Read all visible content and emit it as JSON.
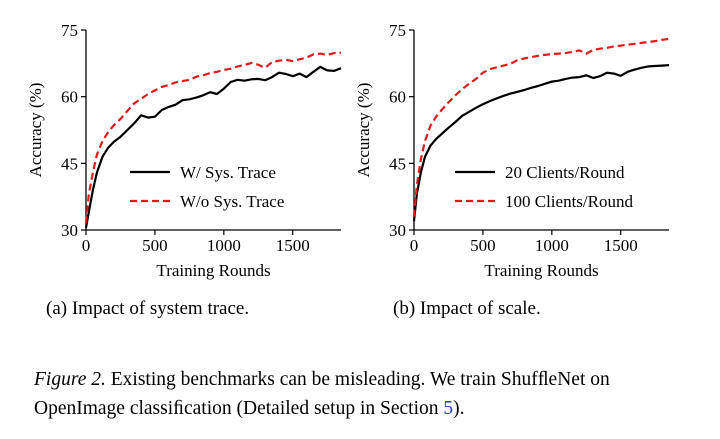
{
  "chart_data": [
    {
      "type": "line",
      "title": "",
      "xlabel": "Training Rounds",
      "ylabel": "Accuracy (%)",
      "xlim": [
        0,
        1850
      ],
      "ylim": [
        30,
        75
      ],
      "xticks": [
        0,
        500,
        1000,
        1500
      ],
      "yticks": [
        30,
        45,
        60,
        75
      ],
      "legend_position": "lower-right",
      "series": [
        {
          "name": "W/ Sys. Trace",
          "color": "#000000",
          "style": "solid",
          "x": [
            0,
            20,
            50,
            80,
            120,
            160,
            200,
            250,
            300,
            350,
            400,
            450,
            500,
            550,
            600,
            650,
            700,
            750,
            800,
            850,
            900,
            950,
            1000,
            1050,
            1100,
            1150,
            1200,
            1250,
            1300,
            1350,
            1400,
            1450,
            1500,
            1550,
            1600,
            1650,
            1700,
            1750,
            1800,
            1850
          ],
          "y": [
            30.5,
            34,
            39,
            43,
            46.5,
            48.5,
            49.8,
            51,
            52.5,
            54,
            55.8,
            55.3,
            55.5,
            57,
            57.7,
            58.2,
            59.2,
            59.4,
            59.8,
            60.3,
            61,
            60.6,
            61.8,
            63.3,
            63.8,
            63.6,
            63.9,
            64,
            63.7,
            64.4,
            65.4,
            65.1,
            64.6,
            65.2,
            64.4,
            65.6,
            66.7,
            65.9,
            65.8,
            66.4
          ]
        },
        {
          "name": "W/o Sys. Trace",
          "color": "#e31a1c",
          "style": "dashed",
          "x": [
            0,
            20,
            50,
            80,
            120,
            160,
            200,
            250,
            300,
            350,
            400,
            450,
            500,
            550,
            600,
            650,
            700,
            750,
            800,
            850,
            900,
            950,
            1000,
            1050,
            1100,
            1150,
            1200,
            1250,
            1300,
            1350,
            1400,
            1450,
            1500,
            1550,
            1600,
            1650,
            1700,
            1750,
            1800,
            1850
          ],
          "y": [
            31.5,
            38,
            43,
            47,
            50,
            52,
            53.5,
            55,
            56.8,
            58.5,
            59.5,
            60.6,
            61.4,
            62.2,
            62.6,
            63.2,
            63.5,
            63.8,
            64.5,
            64.8,
            65.3,
            65.6,
            66,
            66.3,
            66.8,
            67.1,
            67.6,
            67.2,
            66.5,
            67.8,
            68.1,
            68.3,
            68,
            68.4,
            68.8,
            69.5,
            69.7,
            69.4,
            69.8,
            69.9
          ]
        }
      ]
    },
    {
      "type": "line",
      "title": "",
      "xlabel": "Training Rounds",
      "ylabel": "Accuracy (%)",
      "xlim": [
        0,
        1850
      ],
      "ylim": [
        30,
        75
      ],
      "xticks": [
        0,
        500,
        1000,
        1500
      ],
      "yticks": [
        30,
        45,
        60,
        75
      ],
      "legend_position": "lower-right",
      "series": [
        {
          "name": "20 Clients/Round",
          "color": "#000000",
          "style": "solid",
          "x": [
            0,
            20,
            50,
            80,
            120,
            160,
            200,
            250,
            300,
            350,
            400,
            450,
            500,
            550,
            600,
            650,
            700,
            750,
            800,
            850,
            900,
            950,
            1000,
            1050,
            1100,
            1150,
            1200,
            1250,
            1300,
            1350,
            1400,
            1450,
            1500,
            1550,
            1600,
            1650,
            1700,
            1750,
            1800,
            1850
          ],
          "y": [
            32,
            38,
            43,
            46.5,
            49,
            50.5,
            51.6,
            53,
            54.3,
            55.7,
            56.6,
            57.5,
            58.3,
            59,
            59.6,
            60.2,
            60.7,
            61.1,
            61.5,
            62,
            62.4,
            62.9,
            63.4,
            63.6,
            64,
            64.3,
            64.4,
            64.8,
            64.2,
            64.6,
            65.4,
            65.2,
            64.7,
            65.6,
            66.1,
            66.5,
            66.8,
            66.9,
            67,
            67.1
          ]
        },
        {
          "name": "100 Clients/Round",
          "color": "#e31a1c",
          "style": "dashed",
          "x": [
            0,
            20,
            50,
            80,
            120,
            160,
            200,
            250,
            300,
            350,
            400,
            450,
            500,
            550,
            600,
            650,
            700,
            750,
            800,
            850,
            900,
            950,
            1000,
            1050,
            1100,
            1150,
            1200,
            1250,
            1300,
            1350,
            1400,
            1450,
            1500,
            1550,
            1600,
            1650,
            1700,
            1750,
            1800,
            1850
          ],
          "y": [
            33,
            40,
            46,
            50,
            53.5,
            55.5,
            57,
            58.7,
            60.3,
            61.7,
            62.9,
            64,
            65.4,
            66.2,
            66.6,
            67,
            67.4,
            68.2,
            68.6,
            68.9,
            69.2,
            69.4,
            69.6,
            69.7,
            69.8,
            70.1,
            70.4,
            69.7,
            70.5,
            70.8,
            71,
            71.3,
            71.5,
            71.7,
            71.9,
            72.1,
            72.3,
            72.5,
            72.8,
            73
          ]
        }
      ]
    }
  ],
  "subcaptions": {
    "a": "(a) Impact of system trace.",
    "b": "(b) Impact of scale."
  },
  "caption": {
    "label": "Figure 2.",
    "text_before_ref": " Existing benchmarks can be misleading. We train ShufﬂeNet on OpenImage classiﬁcation (Detailed setup in Section ",
    "ref": "5",
    "text_after_ref": ")."
  }
}
